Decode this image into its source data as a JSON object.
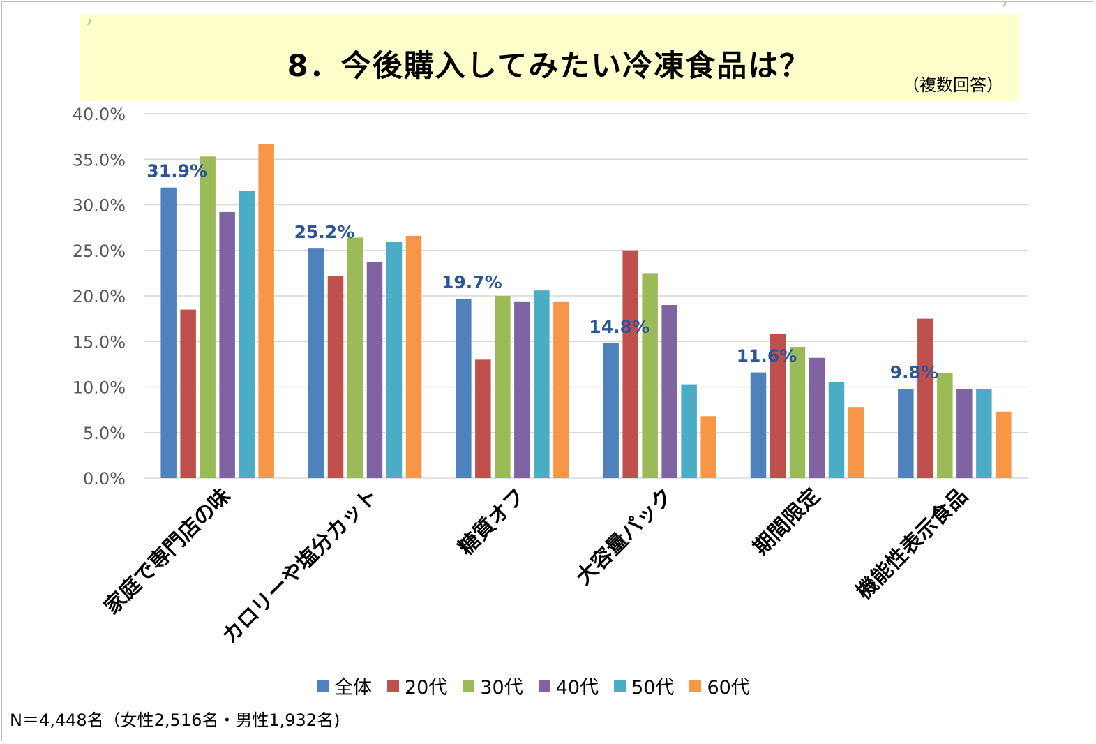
{
  "header": {
    "title": "8．今後購入してみたい冷凍食品は？",
    "subtitle": "（複数回答）"
  },
  "footnote": "N＝4,448名（女性2,516名・男性1,932名)",
  "chart_data": {
    "type": "bar",
    "categories": [
      "家庭で専門店の味",
      "カロリーや塩分カット",
      "糖質オフ",
      "大容量パック",
      "期間限定",
      "機能性表示食品"
    ],
    "series": [
      {
        "name": "全体",
        "color": "#4f81bd",
        "values": [
          31.9,
          25.2,
          19.7,
          14.8,
          11.6,
          9.8
        ]
      },
      {
        "name": "20代",
        "color": "#c0504d",
        "values": [
          18.5,
          22.2,
          13.0,
          25.0,
          15.8,
          17.5
        ]
      },
      {
        "name": "30代",
        "color": "#9bbb59",
        "values": [
          35.3,
          26.4,
          20.0,
          22.5,
          14.4,
          11.5
        ]
      },
      {
        "name": "40代",
        "color": "#8064a2",
        "values": [
          29.2,
          23.7,
          19.4,
          19.0,
          13.2,
          9.8
        ]
      },
      {
        "name": "50代",
        "color": "#4bacc6",
        "values": [
          31.5,
          25.9,
          20.6,
          10.3,
          10.5,
          9.8
        ]
      },
      {
        "name": "60代",
        "color": "#f79646",
        "values": [
          36.7,
          26.6,
          19.4,
          6.8,
          7.8,
          7.3
        ]
      }
    ],
    "data_labels": [
      "31.9%",
      "25.2%",
      "19.7%",
      "14.8%",
      "11.6%",
      "9.8%"
    ],
    "data_label_color": "#2e5597",
    "y_ticks": [
      "0.0%",
      "5.0%",
      "10.0%",
      "15.0%",
      "20.0%",
      "25.0%",
      "30.0%",
      "35.0%",
      "40.0%"
    ],
    "ylim": [
      0,
      40
    ],
    "grid": true,
    "legend_position": "bottom"
  }
}
